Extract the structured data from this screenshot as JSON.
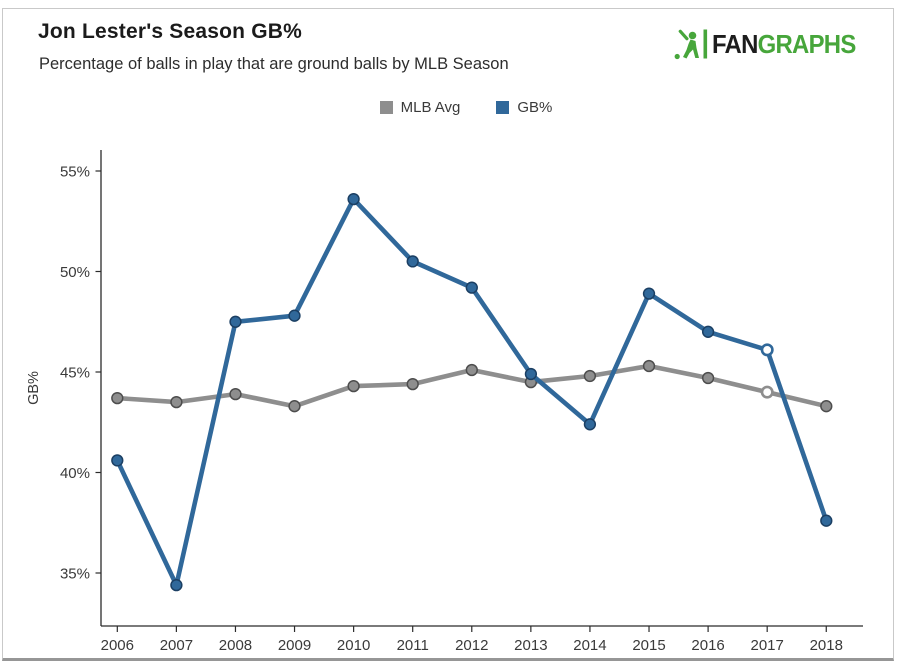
{
  "logo": {
    "text_dark": "FAN",
    "text_green": "GRAPHS",
    "green_color": "#47A63B",
    "dark_color": "#1D1D1D"
  },
  "chart_data": {
    "type": "line",
    "title": "Jon Lester's Season GB%",
    "subtitle": "Percentage of balls in play that are ground balls by MLB Season",
    "x": [
      2006,
      2007,
      2008,
      2009,
      2010,
      2011,
      2012,
      2013,
      2014,
      2015,
      2016,
      2017,
      2018
    ],
    "series": [
      {
        "name": "MLB Avg",
        "color": "#8E8E8E",
        "marker_edge": "#4D4D4D",
        "open_points": [
          2017
        ],
        "values": [
          43.7,
          43.5,
          43.9,
          43.3,
          44.3,
          44.4,
          45.1,
          44.5,
          44.8,
          45.3,
          44.7,
          44.0,
          43.3
        ]
      },
      {
        "name": "GB%",
        "color": "#30689A",
        "marker_edge": "#1B3F63",
        "open_points": [
          2017
        ],
        "values": [
          40.6,
          34.4,
          47.5,
          47.8,
          53.6,
          50.5,
          49.2,
          44.9,
          42.4,
          48.9,
          47.0,
          46.1,
          37.6
        ]
      }
    ],
    "xlabel": "",
    "ylabel": "GB%",
    "yticks": [
      35,
      40,
      45,
      50,
      55
    ],
    "ytick_suffix": "%",
    "ylim": [
      32.4,
      56.0
    ],
    "grid": false,
    "legend_position": "top-center",
    "axis_color": "#2b2b2b",
    "tick_label_color": "#3a3a3a"
  }
}
